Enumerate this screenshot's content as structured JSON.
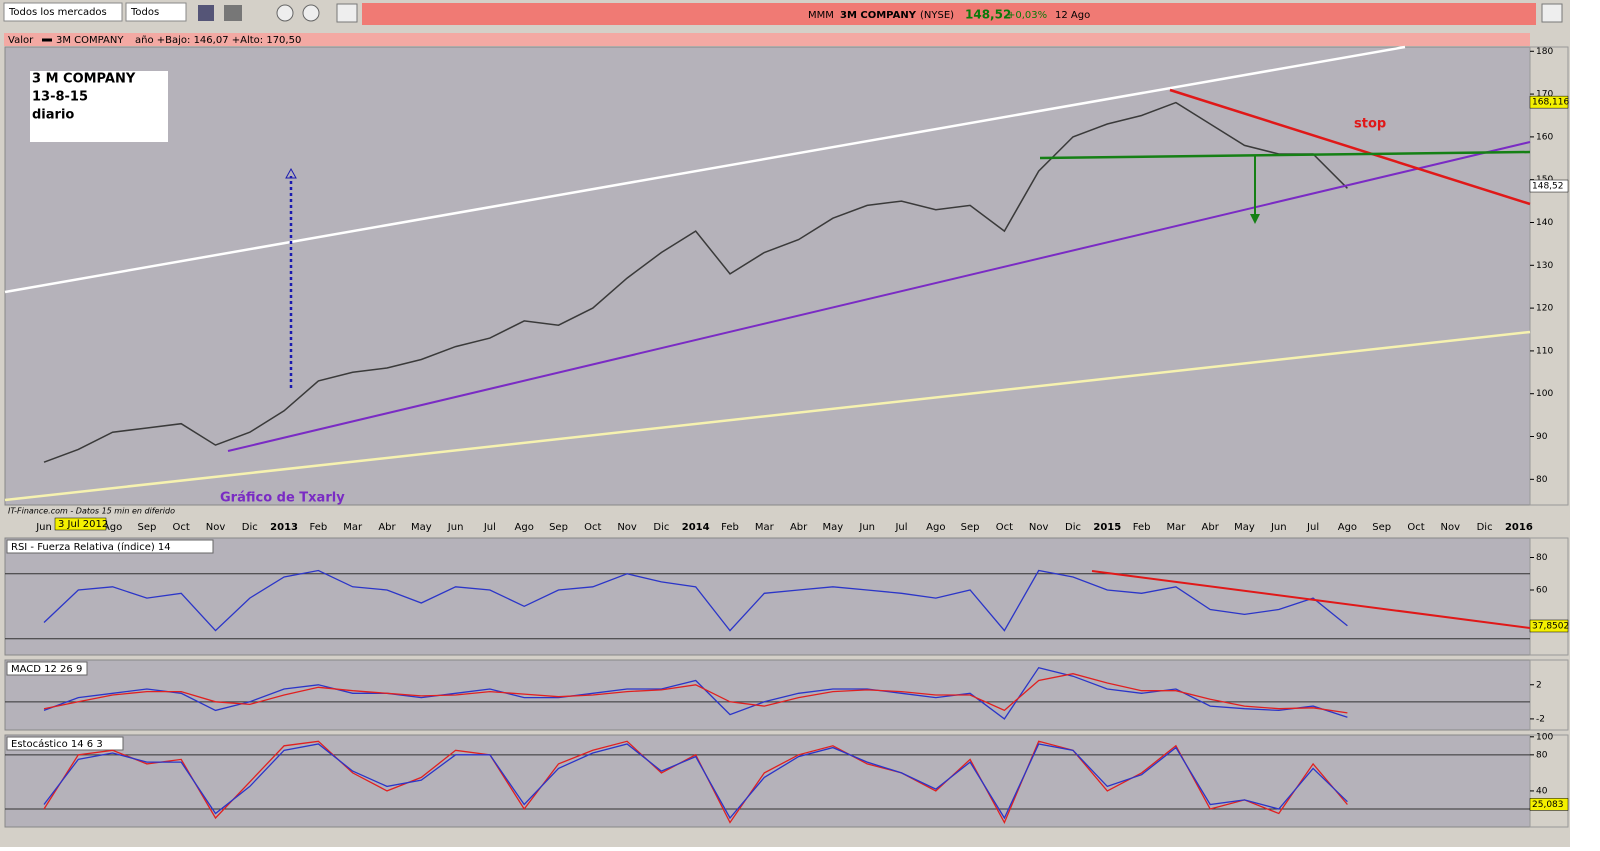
{
  "toolbar": {
    "market_select": "Todos los mercados",
    "type_select": "Todos"
  },
  "ticker": {
    "symbol": "MMM",
    "name": "3M COMPANY",
    "exchange": "(NYSE)",
    "price": "148,52",
    "change": "+0,03%",
    "date": "12 Ago"
  },
  "chart_data": [
    {
      "type": "line",
      "title": "Valor",
      "subtitle": "año +Bajo: 146,07 +Alto: 170,50",
      "categories": [
        "Jun",
        null,
        "Ago",
        "Sep",
        "Oct",
        "Nov",
        "Dic",
        "2013",
        "Feb",
        "Mar",
        "Abr",
        "May",
        "Jun",
        "Jul",
        "Ago",
        "Sep",
        "Oct",
        "Nov",
        "Dic",
        "2014",
        "Feb",
        "Mar",
        "Abr",
        "May",
        "Jun",
        "Jul",
        "Ago",
        "Sep",
        "Oct",
        "Nov",
        "Dic",
        "2015",
        "Feb",
        "Mar",
        "Abr",
        "May",
        "Jun",
        "Jul",
        "Ago",
        "Sep",
        "Oct",
        "Nov",
        "Dic",
        "2016"
      ],
      "series": [
        {
          "name": "3M COMPANY",
          "color": "#3a3a3a",
          "values": [
            84,
            87,
            91,
            92,
            93,
            88,
            91,
            96,
            103,
            105,
            106,
            108,
            111,
            113,
            117,
            116,
            120,
            127,
            133,
            138,
            128,
            133,
            136,
            141,
            144,
            145,
            143,
            144,
            138,
            152,
            160,
            163,
            165,
            168,
            163,
            158,
            156,
            156,
            148,
            null,
            null,
            null,
            null,
            null
          ]
        }
      ],
      "ylim": [
        74,
        181
      ],
      "yticks": [
        80,
        90,
        100,
        110,
        120,
        130,
        140,
        150,
        160,
        170,
        180
      ],
      "price_labels": [
        {
          "value": 168.116,
          "label": "168,116"
        },
        {
          "value": 148.52,
          "label": "148,52"
        }
      ],
      "annotations": {
        "box": [
          "3 M COMPANY",
          "13-8-15",
          "diario"
        ],
        "stop": "stop",
        "author": "Gráfico de Txarly",
        "source": "IT-Finance.com - Datos 15 min en diferido",
        "date_marker": "3 Jul 2012"
      }
    },
    {
      "type": "line",
      "title": "RSI - Fuerza Relativa (índice) 14",
      "series": [
        {
          "color": "#2b35c8",
          "values": [
            40,
            60,
            62,
            55,
            58,
            35,
            55,
            68,
            72,
            62,
            60,
            52,
            62,
            60,
            50,
            60,
            62,
            70,
            65,
            62,
            35,
            58,
            60,
            62,
            60,
            58,
            55,
            60,
            35,
            72,
            68,
            60,
            58,
            62,
            48,
            45,
            48,
            55,
            38,
            null,
            null,
            null,
            null,
            null
          ]
        }
      ],
      "ylim": [
        20,
        92
      ],
      "yticks": [
        60,
        80
      ],
      "levels": [
        30,
        70
      ],
      "value_label": {
        "value": 37.8502,
        "label": "37,8502"
      }
    },
    {
      "type": "line",
      "title": "MACD 12 26 9",
      "series": [
        {
          "color": "#2b35c8",
          "values": [
            -1,
            0.5,
            1,
            1.5,
            1,
            -1,
            0,
            1.5,
            2,
            1,
            1,
            0.5,
            1,
            1.5,
            0.5,
            0.5,
            1,
            1.5,
            1.5,
            2.5,
            -1.5,
            0,
            1,
            1.5,
            1.5,
            1,
            0.5,
            1,
            -2,
            4,
            3,
            1.5,
            1,
            1.5,
            -0.5,
            -0.8,
            -1,
            -0.5,
            -1.8,
            null,
            null,
            null,
            null,
            null
          ]
        },
        {
          "color": "#e02020",
          "values": [
            -0.8,
            0,
            0.8,
            1.2,
            1.2,
            0,
            -0.3,
            0.8,
            1.7,
            1.3,
            1,
            0.7,
            0.8,
            1.2,
            0.9,
            0.6,
            0.8,
            1.2,
            1.4,
            2,
            0,
            -0.5,
            0.5,
            1.2,
            1.4,
            1.2,
            0.8,
            0.8,
            -1,
            2.5,
            3.3,
            2.2,
            1.3,
            1.3,
            0.3,
            -0.5,
            -0.8,
            -0.7,
            -1.3,
            null,
            null,
            null,
            null,
            null
          ]
        }
      ],
      "ylim": [
        -3.3,
        4.9
      ],
      "yticks": [
        -2,
        2
      ],
      "levels": [
        0
      ]
    },
    {
      "type": "line",
      "title": "Estocástico 14 6 3",
      "series": [
        {
          "color": "#e02020",
          "values": [
            20,
            80,
            85,
            70,
            75,
            10,
            50,
            90,
            95,
            60,
            40,
            55,
            85,
            80,
            20,
            70,
            85,
            95,
            60,
            80,
            5,
            60,
            80,
            90,
            70,
            60,
            40,
            75,
            5,
            95,
            85,
            40,
            60,
            90,
            20,
            30,
            15,
            70,
            25,
            null,
            null,
            null,
            null,
            null
          ]
        },
        {
          "color": "#2b35c8",
          "values": [
            25,
            75,
            82,
            72,
            72,
            15,
            45,
            85,
            92,
            62,
            45,
            52,
            80,
            80,
            25,
            65,
            82,
            92,
            62,
            78,
            10,
            55,
            78,
            88,
            72,
            60,
            42,
            72,
            10,
            92,
            85,
            45,
            58,
            88,
            25,
            30,
            20,
            65,
            28,
            null,
            null,
            null,
            null,
            null
          ]
        }
      ],
      "ylim": [
        0,
        102
      ],
      "yticks": [
        40,
        80,
        100
      ],
      "levels": [
        20,
        80
      ],
      "value_label": {
        "value": 25.083,
        "label": "25,083"
      }
    }
  ]
}
